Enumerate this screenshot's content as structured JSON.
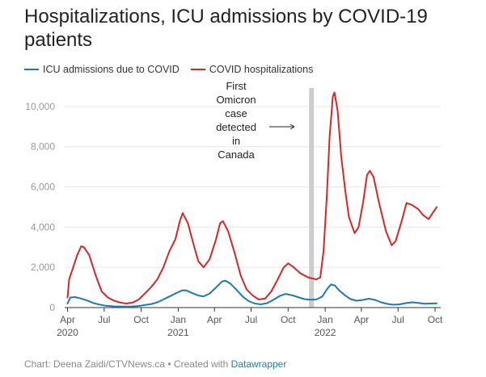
{
  "title": "Hospitalizations, ICU admissions by COVID-19 patients",
  "legend": [
    {
      "label": "ICU admissions due to COVID",
      "color": "#1f77b4"
    },
    {
      "label": "COVID hospitalizations",
      "color": "#d62728"
    }
  ],
  "footer": {
    "prefix": "Chart: Deena Zaidi/CTVNews.ca • Created with ",
    "link": "Datawrapper"
  },
  "chart_data": {
    "type": "line",
    "title": "Hospitalizations, ICU admissions by COVID-19 patients",
    "xlabel": "",
    "ylabel": "",
    "ylim": [
      0,
      10800
    ],
    "xlim": [
      "2020-03-25",
      "2022-10-15"
    ],
    "y_ticks": [
      {
        "value": 0,
        "label": "0"
      },
      {
        "value": 2000,
        "label": "2,000"
      },
      {
        "value": 4000,
        "label": "4,000"
      },
      {
        "value": 6000,
        "label": "6,000"
      },
      {
        "value": 8000,
        "label": "8,000"
      },
      {
        "value": 10000,
        "label": "10,000"
      }
    ],
    "x_ticks": [
      {
        "date": "2020-04-01",
        "label": "Apr",
        "sublabel": "2020"
      },
      {
        "date": "2020-07-01",
        "label": "Jul",
        "sublabel": ""
      },
      {
        "date": "2020-10-01",
        "label": "Oct",
        "sublabel": ""
      },
      {
        "date": "2021-01-01",
        "label": "Jan",
        "sublabel": "2021"
      },
      {
        "date": "2021-04-01",
        "label": "Apr",
        "sublabel": ""
      },
      {
        "date": "2021-07-01",
        "label": "Jul",
        "sublabel": ""
      },
      {
        "date": "2021-10-01",
        "label": "Oct",
        "sublabel": ""
      },
      {
        "date": "2022-01-01",
        "label": "Jan",
        "sublabel": "2022"
      },
      {
        "date": "2022-04-01",
        "label": "Apr",
        "sublabel": ""
      },
      {
        "date": "2022-07-01",
        "label": "Jul",
        "sublabel": ""
      },
      {
        "date": "2022-10-01",
        "label": "Oct",
        "sublabel": ""
      }
    ],
    "grid": true,
    "legend_position": "top-left",
    "annotation": {
      "lines": [
        "First",
        "Omicron",
        "case",
        "detected",
        "in",
        "Canada"
      ],
      "date": "2021-11-28",
      "band_color": "#cccccc"
    },
    "series": [
      {
        "name": "ICU admissions due to COVID",
        "color": "#1f77b4",
        "points": [
          [
            "2020-04-01",
            200
          ],
          [
            "2020-04-08",
            500
          ],
          [
            "2020-04-20",
            520
          ],
          [
            "2020-05-05",
            450
          ],
          [
            "2020-05-20",
            350
          ],
          [
            "2020-06-05",
            220
          ],
          [
            "2020-06-20",
            150
          ],
          [
            "2020-07-05",
            90
          ],
          [
            "2020-07-25",
            60
          ],
          [
            "2020-08-15",
            50
          ],
          [
            "2020-09-05",
            50
          ],
          [
            "2020-09-25",
            80
          ],
          [
            "2020-10-10",
            130
          ],
          [
            "2020-10-25",
            170
          ],
          [
            "2020-11-10",
            260
          ],
          [
            "2020-11-25",
            400
          ],
          [
            "2020-12-10",
            550
          ],
          [
            "2020-12-25",
            700
          ],
          [
            "2021-01-10",
            850
          ],
          [
            "2021-01-20",
            860
          ],
          [
            "2021-02-05",
            720
          ],
          [
            "2021-02-20",
            600
          ],
          [
            "2021-03-05",
            560
          ],
          [
            "2021-03-20",
            700
          ],
          [
            "2021-04-05",
            1000
          ],
          [
            "2021-04-20",
            1300
          ],
          [
            "2021-04-28",
            1340
          ],
          [
            "2021-05-10",
            1200
          ],
          [
            "2021-05-25",
            900
          ],
          [
            "2021-06-10",
            550
          ],
          [
            "2021-06-25",
            320
          ],
          [
            "2021-07-10",
            200
          ],
          [
            "2021-07-25",
            160
          ],
          [
            "2021-08-10",
            220
          ],
          [
            "2021-08-25",
            380
          ],
          [
            "2021-09-10",
            580
          ],
          [
            "2021-09-25",
            680
          ],
          [
            "2021-10-10",
            620
          ],
          [
            "2021-10-25",
            520
          ],
          [
            "2021-11-10",
            420
          ],
          [
            "2021-11-25",
            390
          ],
          [
            "2021-12-10",
            400
          ],
          [
            "2021-12-25",
            550
          ],
          [
            "2022-01-05",
            900
          ],
          [
            "2022-01-15",
            1150
          ],
          [
            "2022-01-25",
            1100
          ],
          [
            "2022-02-05",
            850
          ],
          [
            "2022-02-20",
            600
          ],
          [
            "2022-03-05",
            420
          ],
          [
            "2022-03-20",
            340
          ],
          [
            "2022-04-05",
            380
          ],
          [
            "2022-04-20",
            440
          ],
          [
            "2022-05-05",
            380
          ],
          [
            "2022-05-20",
            260
          ],
          [
            "2022-06-05",
            180
          ],
          [
            "2022-06-20",
            140
          ],
          [
            "2022-07-05",
            160
          ],
          [
            "2022-07-20",
            220
          ],
          [
            "2022-08-05",
            260
          ],
          [
            "2022-08-20",
            230
          ],
          [
            "2022-09-05",
            190
          ],
          [
            "2022-09-20",
            200
          ],
          [
            "2022-10-05",
            210
          ]
        ]
      },
      {
        "name": "COVID hospitalizations",
        "color": "#d62728",
        "points": [
          [
            "2020-04-01",
            500
          ],
          [
            "2020-04-05",
            1400
          ],
          [
            "2020-04-15",
            2000
          ],
          [
            "2020-04-25",
            2600
          ],
          [
            "2020-05-05",
            3050
          ],
          [
            "2020-05-12",
            3000
          ],
          [
            "2020-05-25",
            2600
          ],
          [
            "2020-06-10",
            1600
          ],
          [
            "2020-06-25",
            800
          ],
          [
            "2020-07-10",
            500
          ],
          [
            "2020-07-25",
            350
          ],
          [
            "2020-08-10",
            250
          ],
          [
            "2020-08-25",
            200
          ],
          [
            "2020-09-10",
            250
          ],
          [
            "2020-09-25",
            400
          ],
          [
            "2020-10-10",
            700
          ],
          [
            "2020-10-25",
            1000
          ],
          [
            "2020-11-10",
            1400
          ],
          [
            "2020-11-25",
            2000
          ],
          [
            "2020-12-10",
            2800
          ],
          [
            "2020-12-25",
            3400
          ],
          [
            "2021-01-05",
            4300
          ],
          [
            "2021-01-12",
            4700
          ],
          [
            "2021-01-25",
            4200
          ],
          [
            "2021-02-10",
            3000
          ],
          [
            "2021-02-20",
            2300
          ],
          [
            "2021-03-05",
            2000
          ],
          [
            "2021-03-20",
            2400
          ],
          [
            "2021-04-05",
            3400
          ],
          [
            "2021-04-15",
            4200
          ],
          [
            "2021-04-22",
            4300
          ],
          [
            "2021-05-05",
            3800
          ],
          [
            "2021-05-20",
            2800
          ],
          [
            "2021-06-05",
            1600
          ],
          [
            "2021-06-20",
            900
          ],
          [
            "2021-07-05",
            600
          ],
          [
            "2021-07-20",
            400
          ],
          [
            "2021-08-05",
            450
          ],
          [
            "2021-08-20",
            800
          ],
          [
            "2021-09-05",
            1400
          ],
          [
            "2021-09-20",
            2000
          ],
          [
            "2021-10-01",
            2200
          ],
          [
            "2021-10-15",
            2000
          ],
          [
            "2021-11-01",
            1700
          ],
          [
            "2021-11-20",
            1500
          ],
          [
            "2021-12-10",
            1400
          ],
          [
            "2021-12-20",
            1500
          ],
          [
            "2021-12-28",
            2800
          ],
          [
            "2022-01-05",
            5500
          ],
          [
            "2022-01-12",
            8500
          ],
          [
            "2022-01-20",
            10500
          ],
          [
            "2022-01-24",
            10700
          ],
          [
            "2022-02-01",
            9800
          ],
          [
            "2022-02-10",
            7500
          ],
          [
            "2022-02-20",
            5800
          ],
          [
            "2022-03-01",
            4500
          ],
          [
            "2022-03-15",
            3700
          ],
          [
            "2022-03-25",
            4000
          ],
          [
            "2022-04-05",
            5200
          ],
          [
            "2022-04-15",
            6600
          ],
          [
            "2022-04-22",
            6800
          ],
          [
            "2022-05-01",
            6500
          ],
          [
            "2022-05-15",
            5200
          ],
          [
            "2022-06-01",
            3800
          ],
          [
            "2022-06-15",
            3100
          ],
          [
            "2022-06-25",
            3300
          ],
          [
            "2022-07-10",
            4300
          ],
          [
            "2022-07-22",
            5200
          ],
          [
            "2022-08-05",
            5100
          ],
          [
            "2022-08-20",
            4900
          ],
          [
            "2022-09-01",
            4600
          ],
          [
            "2022-09-15",
            4400
          ],
          [
            "2022-09-25",
            4700
          ],
          [
            "2022-10-05",
            5000
          ]
        ]
      }
    ]
  }
}
